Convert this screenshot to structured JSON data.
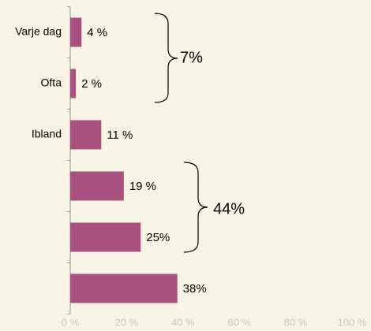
{
  "chart_data": {
    "type": "bar",
    "orientation": "horizontal",
    "categories": [
      "Varje dag",
      "Ofta",
      "Ibland",
      null,
      null,
      null
    ],
    "values": [
      4,
      2,
      11,
      19,
      25,
      38
    ],
    "value_labels": [
      "4 %",
      "2 %",
      "11 %",
      "19 %",
      "25%",
      "38%"
    ],
    "color": "#a8507e",
    "xlim": [
      0,
      100
    ],
    "xticks": [
      {
        "value": 0,
        "label": "0 %"
      },
      {
        "value": 20,
        "label": "20 %"
      },
      {
        "value": 40,
        "label": "40 %"
      },
      {
        "value": 60,
        "label": "60 %"
      },
      {
        "value": 80,
        "label": "80 %"
      },
      {
        "value": 100,
        "label": "100 %"
      }
    ],
    "grid": false,
    "annotations": [
      {
        "text": "7%"
      },
      {
        "text": "44%"
      }
    ]
  }
}
